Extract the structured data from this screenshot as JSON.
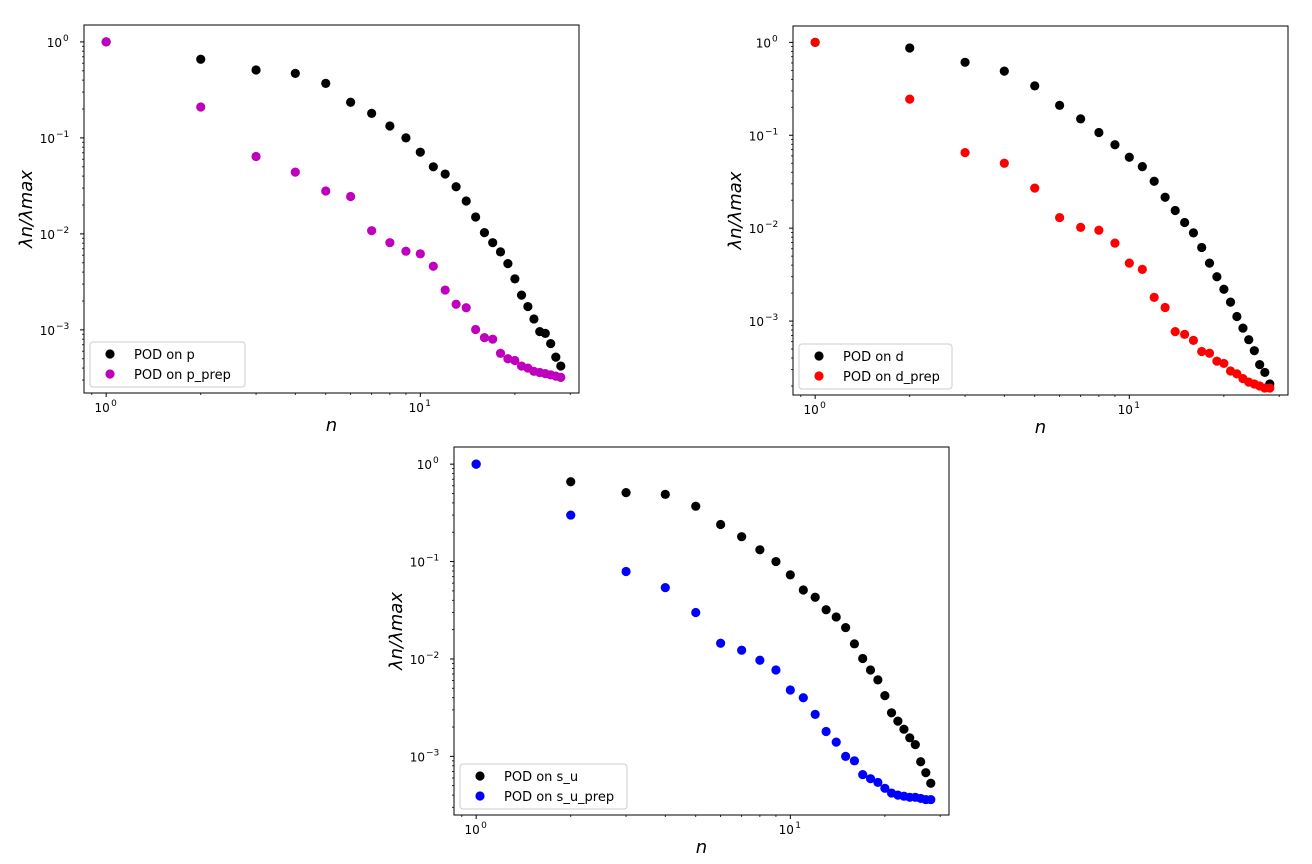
{
  "chart_data": [
    {
      "type": "scatter",
      "xscale": "log",
      "yscale": "log",
      "xlim": [
        0.85,
        32
      ],
      "ylim": [
        0.00022,
        1.5
      ],
      "xlabel": "n",
      "ylabel": "λn/λmax",
      "x_ticks": [
        {
          "value": 1,
          "base": "10",
          "exp": "0"
        },
        {
          "value": 10,
          "base": "10",
          "exp": "1"
        }
      ],
      "y_ticks": [
        {
          "value": 1,
          "base": "10",
          "exp": "0"
        },
        {
          "value": 0.1,
          "base": "10",
          "exp": "−1"
        },
        {
          "value": 0.01,
          "base": "10",
          "exp": "−2"
        },
        {
          "value": 0.001,
          "base": "10",
          "exp": "−3"
        }
      ],
      "legend_position": "lower-left",
      "series": [
        {
          "name": "POD on p",
          "color": "#000000",
          "x": [
            1,
            2,
            3,
            4,
            5,
            6,
            7,
            8,
            9,
            10,
            11,
            12,
            13,
            14,
            15,
            16,
            17,
            18,
            19,
            20,
            21,
            22,
            23,
            24,
            25,
            26,
            27,
            28
          ],
          "y": [
            1.0,
            0.66,
            0.51,
            0.47,
            0.37,
            0.235,
            0.18,
            0.133,
            0.1,
            0.071,
            0.05,
            0.042,
            0.031,
            0.022,
            0.015,
            0.0103,
            0.0081,
            0.0065,
            0.0049,
            0.0034,
            0.0023,
            0.00175,
            0.0013,
            0.00096,
            0.00092,
            0.00072,
            0.00052,
            0.00042
          ]
        },
        {
          "name": "POD on p_prep",
          "color": "#bf00bf",
          "x": [
            1,
            2,
            3,
            4,
            5,
            6,
            7,
            8,
            9,
            10,
            11,
            12,
            13,
            14,
            15,
            16,
            17,
            18,
            19,
            20,
            21,
            22,
            23,
            24,
            25,
            26,
            27,
            28
          ],
          "y": [
            1.0,
            0.21,
            0.064,
            0.044,
            0.028,
            0.0245,
            0.0108,
            0.0081,
            0.0066,
            0.0062,
            0.0046,
            0.0026,
            0.00185,
            0.0017,
            0.00101,
            0.00083,
            0.0008,
            0.00057,
            0.0005,
            0.00048,
            0.00042,
            0.0004,
            0.00037,
            0.00036,
            0.00035,
            0.00034,
            0.00033,
            0.00032
          ]
        }
      ]
    },
    {
      "type": "scatter",
      "xscale": "log",
      "yscale": "log",
      "xlim": [
        0.85,
        32
      ],
      "ylim": [
        0.00016,
        1.5
      ],
      "xlabel": "n",
      "ylabel": "λn/λmax",
      "x_ticks": [
        {
          "value": 1,
          "base": "10",
          "exp": "0"
        },
        {
          "value": 10,
          "base": "10",
          "exp": "1"
        }
      ],
      "y_ticks": [
        {
          "value": 1,
          "base": "10",
          "exp": "0"
        },
        {
          "value": 0.1,
          "base": "10",
          "exp": "−1"
        },
        {
          "value": 0.01,
          "base": "10",
          "exp": "−2"
        },
        {
          "value": 0.001,
          "base": "10",
          "exp": "−3"
        }
      ],
      "legend_position": "lower-left",
      "series": [
        {
          "name": "POD on d",
          "color": "#000000",
          "x": [
            1,
            2,
            3,
            4,
            5,
            6,
            7,
            8,
            9,
            10,
            11,
            12,
            13,
            14,
            15,
            16,
            17,
            18,
            19,
            20,
            21,
            22,
            23,
            24,
            25,
            26,
            27,
            28
          ],
          "y": [
            1.0,
            0.87,
            0.61,
            0.49,
            0.34,
            0.21,
            0.15,
            0.107,
            0.079,
            0.058,
            0.046,
            0.032,
            0.0215,
            0.0155,
            0.0115,
            0.0089,
            0.0062,
            0.0042,
            0.003,
            0.0022,
            0.0016,
            0.00112,
            0.00084,
            0.00063,
            0.00048,
            0.00034,
            0.00028,
            0.00021
          ]
        },
        {
          "name": "POD on d_prep",
          "color": "#ff0000",
          "x": [
            1,
            2,
            3,
            4,
            5,
            6,
            7,
            8,
            9,
            10,
            11,
            12,
            13,
            14,
            15,
            16,
            17,
            18,
            19,
            20,
            21,
            22,
            23,
            24,
            25,
            26,
            27,
            28
          ],
          "y": [
            1.0,
            0.245,
            0.065,
            0.05,
            0.027,
            0.013,
            0.0102,
            0.0095,
            0.0069,
            0.0042,
            0.0036,
            0.0018,
            0.0014,
            0.00077,
            0.00072,
            0.00062,
            0.00047,
            0.00045,
            0.00037,
            0.00035,
            0.00029,
            0.00027,
            0.00024,
            0.00022,
            0.00021,
            0.0002,
            0.00019,
            0.00019
          ]
        }
      ]
    },
    {
      "type": "scatter",
      "xscale": "log",
      "yscale": "log",
      "xlim": [
        0.85,
        32
      ],
      "ylim": [
        0.00025,
        1.5
      ],
      "xlabel": "n",
      "ylabel": "λn/λmax",
      "x_ticks": [
        {
          "value": 1,
          "base": "10",
          "exp": "0"
        },
        {
          "value": 10,
          "base": "10",
          "exp": "1"
        }
      ],
      "y_ticks": [
        {
          "value": 1,
          "base": "10",
          "exp": "0"
        },
        {
          "value": 0.1,
          "base": "10",
          "exp": "−1"
        },
        {
          "value": 0.01,
          "base": "10",
          "exp": "−2"
        },
        {
          "value": 0.001,
          "base": "10",
          "exp": "−3"
        }
      ],
      "legend_position": "lower-left",
      "series": [
        {
          "name": "POD on s_u",
          "color": "#000000",
          "x": [
            1,
            2,
            3,
            4,
            5,
            6,
            7,
            8,
            9,
            10,
            11,
            12,
            13,
            14,
            15,
            16,
            17,
            18,
            19,
            20,
            21,
            22,
            23,
            24,
            25,
            26,
            27,
            28
          ],
          "y": [
            1.0,
            0.66,
            0.51,
            0.49,
            0.37,
            0.24,
            0.18,
            0.132,
            0.1,
            0.073,
            0.051,
            0.043,
            0.032,
            0.027,
            0.021,
            0.0143,
            0.0101,
            0.0077,
            0.0061,
            0.0042,
            0.0028,
            0.0023,
            0.0019,
            0.00155,
            0.00132,
            0.00088,
            0.00068,
            0.00053
          ]
        },
        {
          "name": "POD on s_u_prep",
          "color": "#0000ff",
          "x": [
            1,
            2,
            3,
            4,
            5,
            6,
            7,
            8,
            9,
            10,
            11,
            12,
            13,
            14,
            15,
            16,
            17,
            18,
            19,
            20,
            21,
            22,
            23,
            24,
            25,
            26,
            27,
            28
          ],
          "y": [
            1.0,
            0.3,
            0.079,
            0.054,
            0.03,
            0.0145,
            0.0123,
            0.0097,
            0.0077,
            0.0048,
            0.004,
            0.0027,
            0.0018,
            0.0014,
            0.001,
            0.0009,
            0.00065,
            0.00059,
            0.00054,
            0.00047,
            0.00042,
            0.0004,
            0.00039,
            0.00038,
            0.00038,
            0.00037,
            0.00036,
            0.00036
          ]
        }
      ]
    }
  ]
}
